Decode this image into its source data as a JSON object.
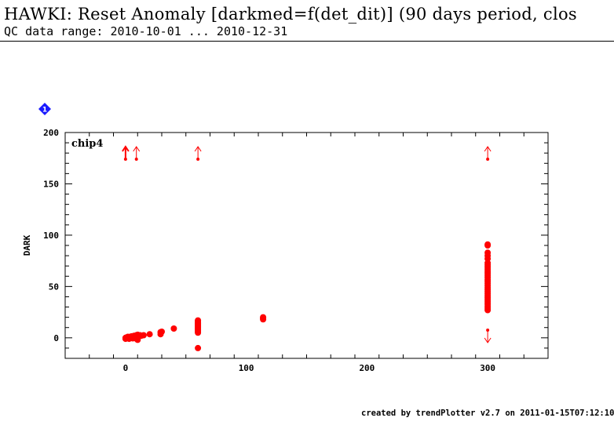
{
  "header": {
    "title": "HAWKI: Reset Anomaly [darkmed=f(det_dit)] (90 days period, clos",
    "subtitle": "QC data range: 2010-10-01 ... 2010-12-31"
  },
  "footer": {
    "credit": "created by trendPlotter v2.7 on 2011-01-15T07:12:10"
  },
  "colors": {
    "data": "#ff0000",
    "badge": "#1a1aff",
    "axis": "#000000"
  },
  "chart_data": {
    "type": "scatter",
    "panel_badge": "1",
    "panel_label": "chip4",
    "xlabel": "",
    "ylabel": "DARK",
    "xlim": [
      -50,
      350
    ],
    "ylim": [
      -20,
      200
    ],
    "x_ticks": [
      0,
      100,
      200,
      300
    ],
    "y_ticks": [
      0,
      50,
      100,
      150,
      200
    ],
    "series": [
      {
        "points": [
          [
            0,
            0
          ],
          [
            0,
            -1
          ],
          [
            1,
            0.5
          ],
          [
            1,
            -0.5
          ],
          [
            2,
            0
          ],
          [
            2,
            1
          ],
          [
            3,
            0.5
          ],
          [
            3,
            -1
          ],
          [
            4,
            1
          ],
          [
            5,
            1.5
          ],
          [
            5,
            0.5
          ],
          [
            6,
            1
          ],
          [
            6,
            -0.5
          ],
          [
            7,
            2
          ],
          [
            7,
            0
          ],
          [
            8,
            2
          ],
          [
            8,
            1
          ],
          [
            9,
            2.5
          ],
          [
            9,
            -1
          ],
          [
            10,
            3
          ],
          [
            10,
            1.5
          ],
          [
            10,
            -0.5
          ],
          [
            10,
            -2
          ],
          [
            11,
            2
          ],
          [
            12,
            2.5
          ],
          [
            13,
            2
          ],
          [
            15,
            2.5
          ],
          [
            20,
            3.5
          ],
          [
            29,
            3.5
          ],
          [
            29,
            5.5
          ],
          [
            30,
            6
          ],
          [
            40,
            9
          ],
          [
            60,
            -10
          ],
          [
            60,
            5
          ],
          [
            60,
            6
          ],
          [
            60,
            7
          ],
          [
            60,
            8
          ],
          [
            60,
            9
          ],
          [
            60,
            10
          ],
          [
            60,
            11
          ],
          [
            60,
            12
          ],
          [
            60,
            13
          ],
          [
            60,
            14
          ],
          [
            60,
            15
          ],
          [
            60,
            16
          ],
          [
            60,
            17
          ],
          [
            114,
            18
          ],
          [
            114,
            19
          ],
          [
            114,
            20
          ],
          [
            300,
            27
          ],
          [
            300,
            29
          ],
          [
            300,
            31
          ],
          [
            300,
            33
          ],
          [
            300,
            35
          ],
          [
            300,
            37
          ],
          [
            300,
            39
          ],
          [
            300,
            41
          ],
          [
            300,
            43
          ],
          [
            300,
            45
          ],
          [
            300,
            47
          ],
          [
            300,
            49
          ],
          [
            300,
            51
          ],
          [
            300,
            53
          ],
          [
            300,
            55
          ],
          [
            300,
            57
          ],
          [
            300,
            59
          ],
          [
            300,
            61
          ],
          [
            300,
            63
          ],
          [
            300,
            65
          ],
          [
            300,
            67
          ],
          [
            300,
            69
          ],
          [
            300,
            71
          ],
          [
            300,
            73
          ],
          [
            300,
            77
          ],
          [
            300,
            80
          ],
          [
            300,
            83
          ],
          [
            300,
            90
          ],
          [
            300,
            91
          ]
        ]
      }
    ],
    "off_scale": [
      {
        "x": 0,
        "direction": "up",
        "bold": true
      },
      {
        "x": 9,
        "direction": "up",
        "bold": false
      },
      {
        "x": 60,
        "direction": "up",
        "bold": false
      },
      {
        "x": 300,
        "direction": "up",
        "bold": false
      },
      {
        "x": 300,
        "direction": "down",
        "bold": false
      }
    ],
    "grid": false,
    "legend": "none"
  }
}
